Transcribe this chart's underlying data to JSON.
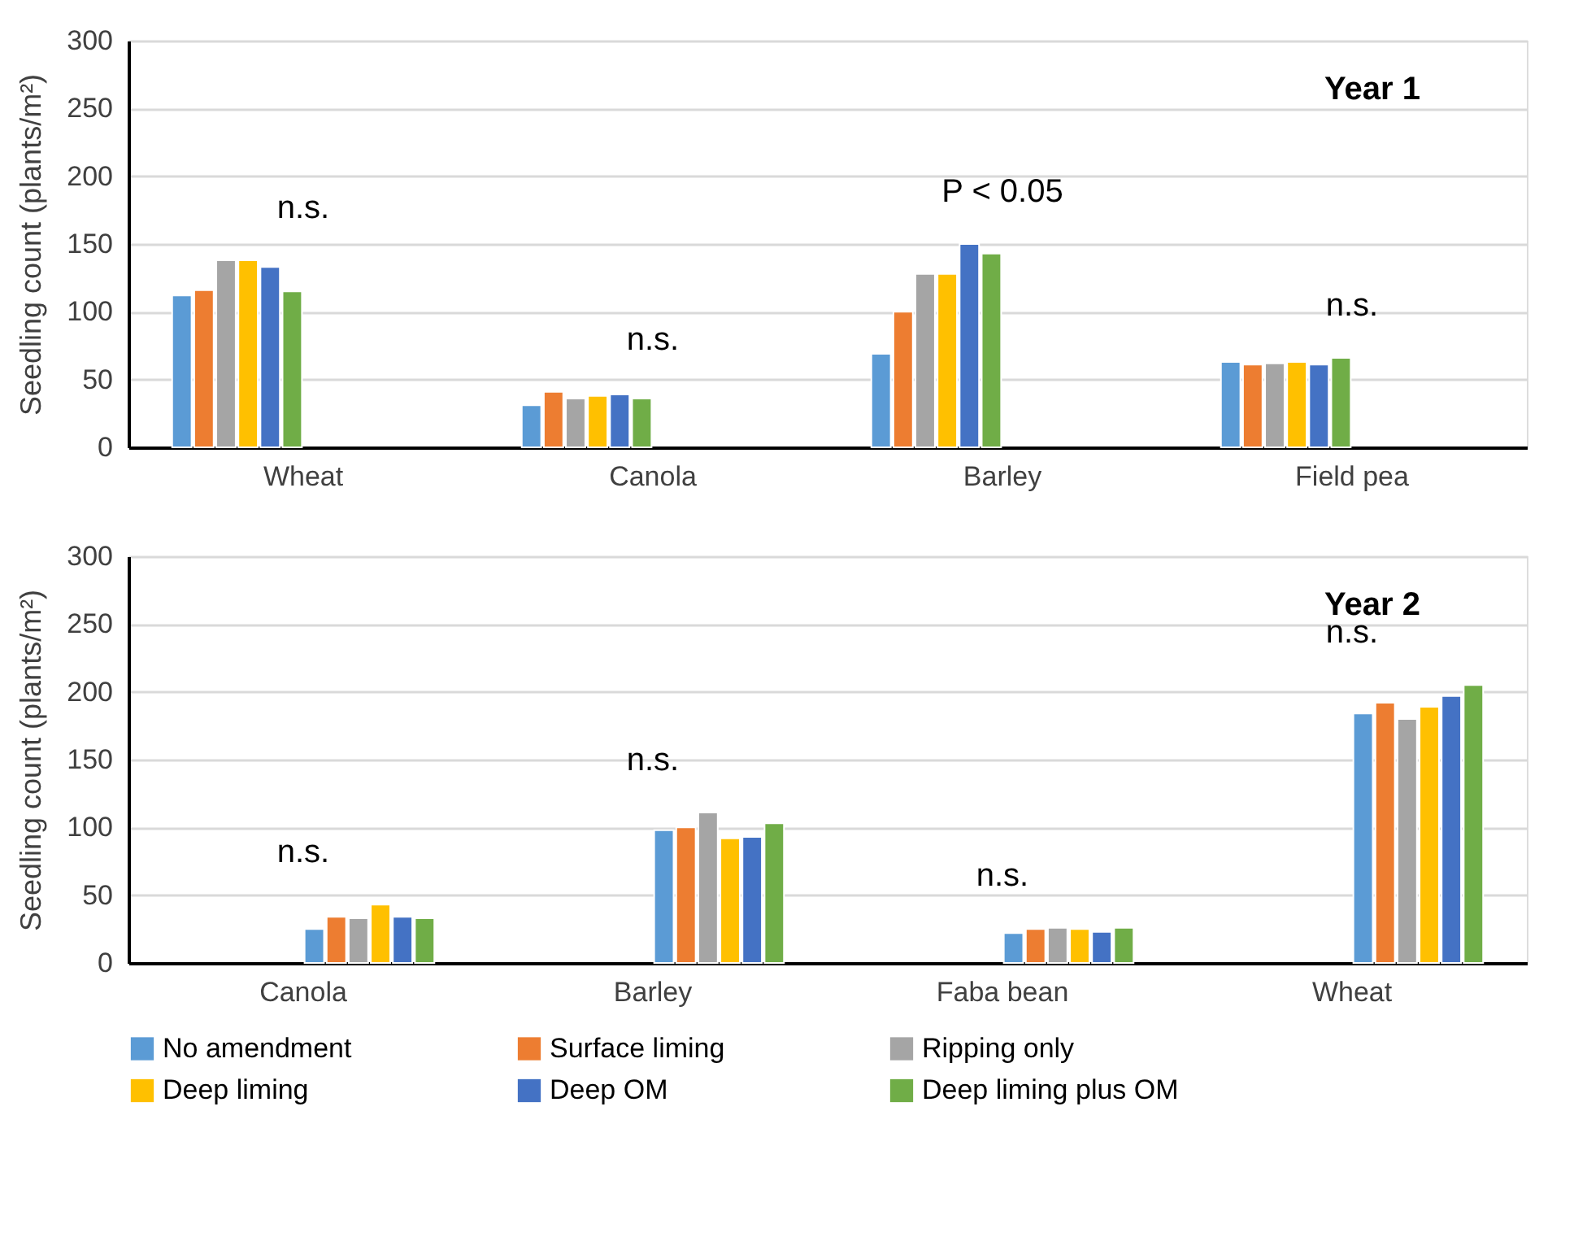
{
  "chart_data": [
    {
      "type": "bar",
      "categories": [
        "Wheat",
        "Canola",
        "Barley",
        "Field pea"
      ],
      "ylabel": "Seedling count (plants/m²)",
      "ylim": [
        0,
        300
      ],
      "yticks": [
        0,
        50,
        100,
        150,
        200,
        250,
        300
      ],
      "grid": "y",
      "legend": false,
      "series": [
        {
          "color": "#5b9bd5",
          "values": [
            112,
            31,
            69,
            63
          ]
        },
        {
          "color": "#ed7d31",
          "values": [
            116,
            41,
            100,
            61
          ]
        },
        {
          "color": "#a5a5a5",
          "values": [
            138,
            36,
            128,
            62
          ]
        },
        {
          "color": "#ffc000",
          "values": [
            138,
            38,
            128,
            63
          ]
        },
        {
          "color": "#4472c4",
          "values": [
            133,
            39,
            150,
            61
          ]
        },
        {
          "color": "#70ad47",
          "values": [
            115,
            36,
            143,
            66
          ]
        }
      ],
      "annotations": [
        "n.s.",
        "n.s.",
        "P < 0.05",
        "n.s.",
        "Year 1"
      ]
    },
    {
      "type": "bar",
      "categories": [
        "Canola",
        "Barley",
        "Faba bean",
        "Wheat"
      ],
      "ylabel": "Seedling count (plants/m²)",
      "ylim": [
        0,
        300
      ],
      "yticks": [
        0,
        50,
        100,
        150,
        200,
        250,
        300
      ],
      "grid": "y",
      "legend": "bottom",
      "series": [
        {
          "name": "No amendment",
          "color": "#5b9bd5",
          "values": [
            25,
            98,
            22,
            184
          ]
        },
        {
          "name": "Surface liming",
          "color": "#ed7d31",
          "values": [
            34,
            100,
            25,
            192
          ]
        },
        {
          "name": "Ripping only",
          "color": "#a5a5a5",
          "values": [
            33,
            111,
            26,
            180
          ]
        },
        {
          "name": "Deep liming",
          "color": "#ffc000",
          "values": [
            43,
            92,
            25,
            189
          ]
        },
        {
          "name": "Deep OM",
          "color": "#4472c4",
          "values": [
            34,
            93,
            23,
            197
          ]
        },
        {
          "name": "Deep liming plus OM",
          "color": "#70ad47",
          "values": [
            33,
            103,
            26,
            205
          ]
        }
      ],
      "annotations": [
        "n.s.",
        "n.s.",
        "n.s.",
        "n.s.",
        "Year 2"
      ]
    }
  ]
}
